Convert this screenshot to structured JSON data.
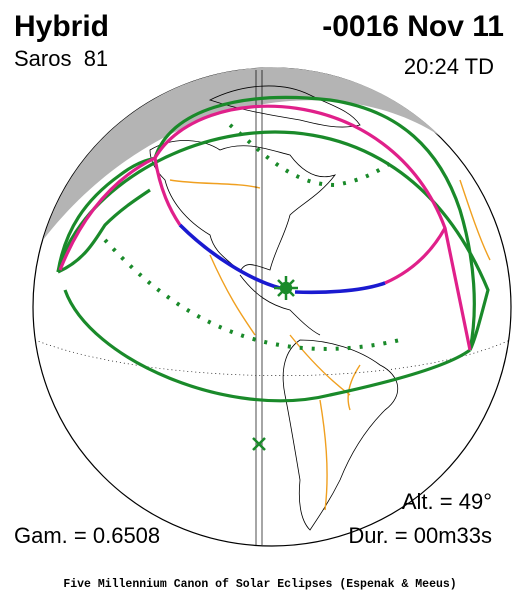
{
  "header": {
    "eclipse_type": "Hybrid",
    "saros": "Saros  81",
    "date": "-0016 Nov 11",
    "time": "20:24 TD"
  },
  "parameters": {
    "gamma": "Gam. = 0.6508",
    "altitude": "Alt. = 49°",
    "duration": "Dur. = 00m33s"
  },
  "footer": "Five Millennium Canon of Solar Eclipses (Espenak & Meeus)"
}
